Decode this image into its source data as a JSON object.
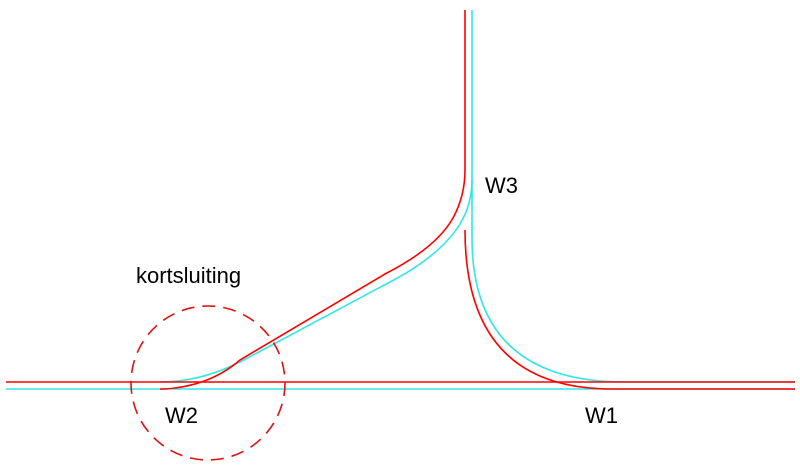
{
  "labels": {
    "short_circuit": "kortsluiting",
    "w1": "W1",
    "w2": "W2",
    "w3": "W3"
  },
  "rails": {
    "rail_a_color": "#ff0000",
    "rail_b_color": "#33e6e6"
  },
  "marker": {
    "color": "#dd1111",
    "style": "dashed"
  }
}
